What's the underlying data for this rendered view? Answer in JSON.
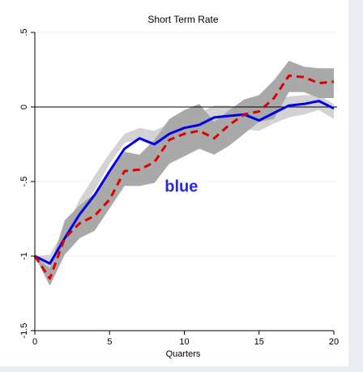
{
  "chart_data": {
    "type": "line",
    "title": "Short Term Rate",
    "xlabel": "Quarters",
    "ylabel": "",
    "xlim": [
      0,
      20
    ],
    "ylim": [
      -1.5,
      0.5
    ],
    "x_ticks": [
      0,
      5,
      10,
      15,
      20
    ],
    "x_tick_labels": [
      "0",
      "5",
      "10",
      "15",
      "20"
    ],
    "y_ticks": [
      0.5,
      0,
      -0.5,
      -1,
      -1.5
    ],
    "y_tick_labels": [
      ".5",
      "0",
      "-.5",
      "-1",
      "-1.5"
    ],
    "grid": true,
    "zero_line": true,
    "annotation": {
      "text": "blue",
      "x": 9.8,
      "y": -0.53,
      "color": "#2b2bd9"
    },
    "x": [
      0,
      1,
      2,
      3,
      4,
      5,
      6,
      7,
      8,
      9,
      10,
      11,
      12,
      13,
      14,
      15,
      16,
      17,
      18,
      19,
      20
    ],
    "bands": [
      {
        "color": "#d3d3d3",
        "lower": [
          -1.0,
          -1.08,
          -0.9,
          -0.7,
          -0.56,
          -0.38,
          -0.24,
          -0.22,
          -0.27,
          -0.25,
          -0.2,
          -0.18,
          -0.13,
          -0.12,
          -0.15,
          -0.16,
          -0.11,
          -0.07,
          -0.05,
          -0.02,
          -0.08
        ],
        "upper": [
          -1.0,
          -0.99,
          -0.82,
          -0.62,
          -0.46,
          -0.31,
          -0.18,
          -0.14,
          -0.16,
          -0.11,
          -0.06,
          -0.04,
          0.01,
          0.01,
          -0.01,
          -0.03,
          0.05,
          0.07,
          0.08,
          0.08,
          0.02
        ]
      },
      {
        "color": "#a9a9a9",
        "lower": [
          -1.0,
          -1.2,
          -0.99,
          -0.88,
          -0.83,
          -0.68,
          -0.53,
          -0.53,
          -0.51,
          -0.38,
          -0.33,
          -0.28,
          -0.32,
          -0.26,
          -0.18,
          -0.1,
          -0.08,
          0.1,
          0.1,
          0.06,
          0.06
        ],
        "upper": [
          -1.0,
          -1.08,
          -0.76,
          -0.66,
          -0.58,
          -0.44,
          -0.3,
          -0.32,
          -0.22,
          -0.08,
          -0.02,
          0.02,
          -0.1,
          -0.02,
          0.05,
          0.08,
          0.18,
          0.31,
          0.27,
          0.26,
          0.26
        ]
      }
    ],
    "series": [
      {
        "color": "#0000e6",
        "dash": "solid",
        "values": [
          -1.0,
          -1.05,
          -0.88,
          -0.72,
          -0.59,
          -0.43,
          -0.28,
          -0.21,
          -0.25,
          -0.18,
          -0.14,
          -0.12,
          -0.07,
          -0.06,
          -0.05,
          -0.09,
          -0.04,
          0.01,
          0.02,
          0.04,
          -0.01
        ]
      },
      {
        "color": "#dd0000",
        "dash": "dashed",
        "values": [
          -1.0,
          -1.15,
          -0.88,
          -0.78,
          -0.73,
          -0.62,
          -0.43,
          -0.42,
          -0.37,
          -0.22,
          -0.18,
          -0.16,
          -0.21,
          -0.12,
          -0.05,
          -0.03,
          0.06,
          0.21,
          0.2,
          0.16,
          0.17
        ]
      }
    ]
  }
}
